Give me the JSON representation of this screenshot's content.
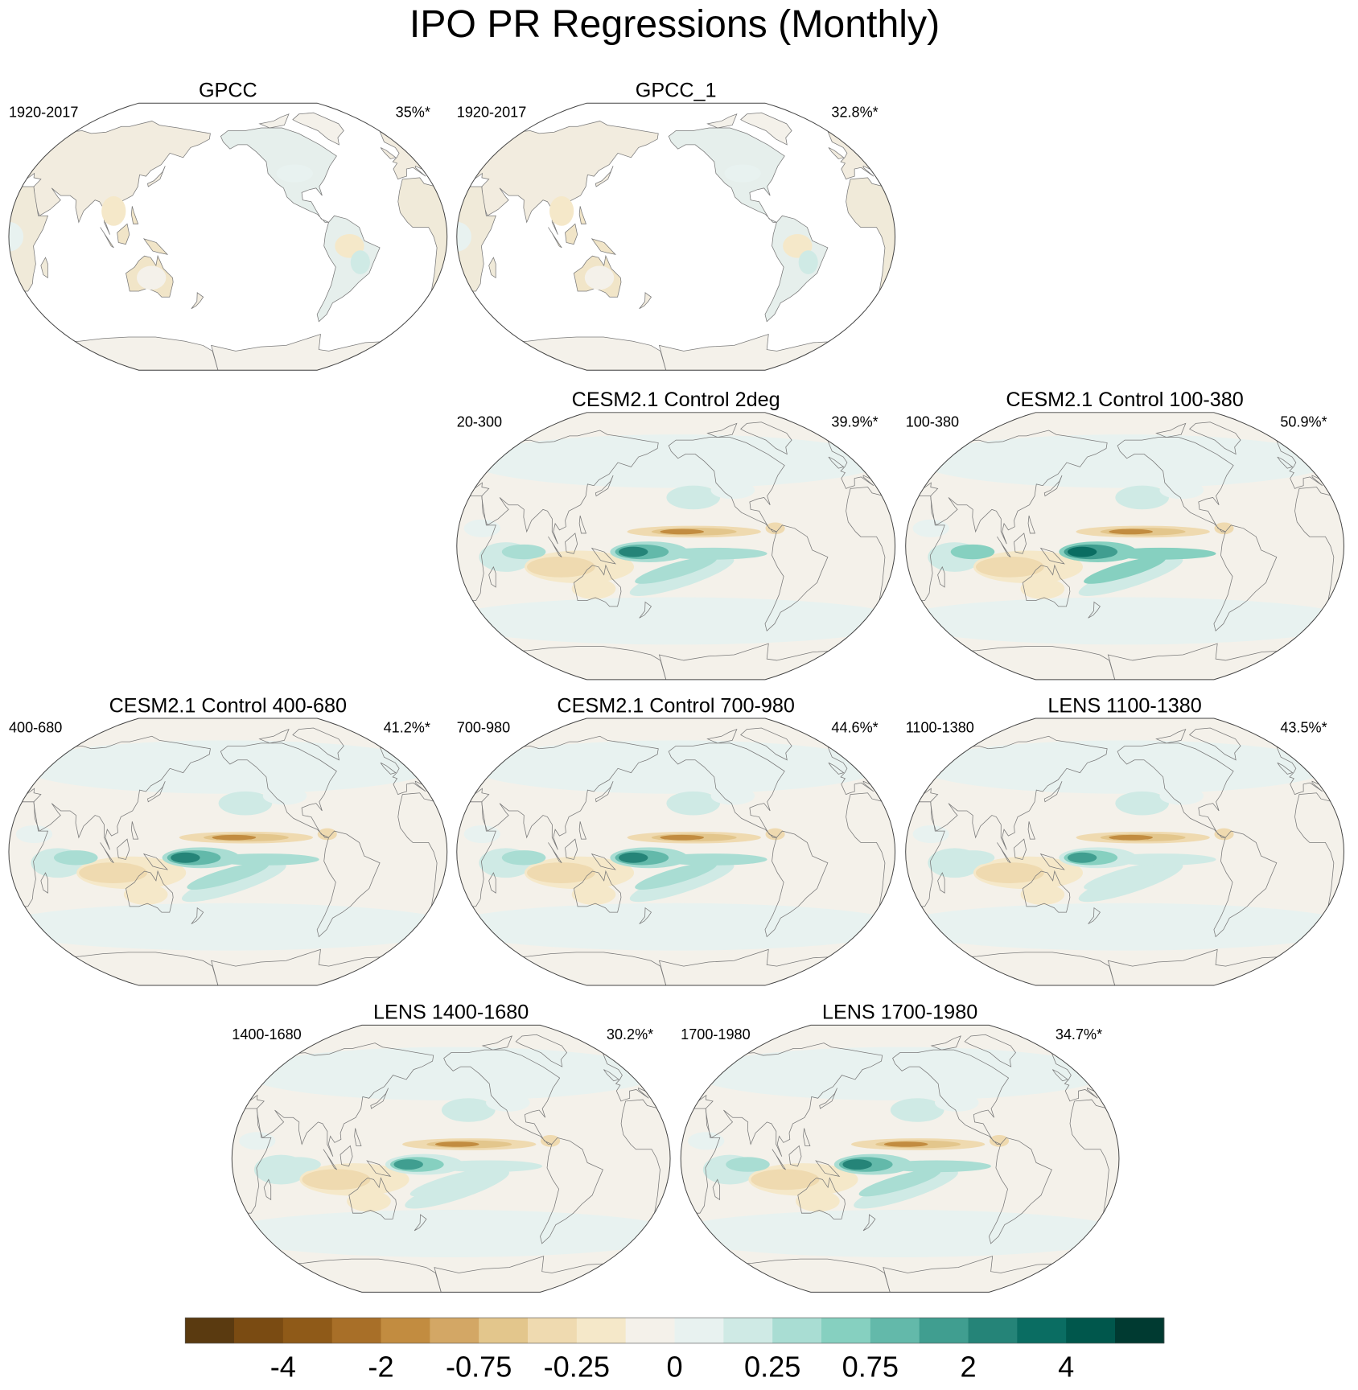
{
  "chart_data": {
    "type": "heatmap",
    "title": "IPO PR Regressions (Monthly)",
    "panels": [
      {
        "title": "GPCC",
        "period": "1920-2017",
        "variance": "35%*"
      },
      {
        "title": "GPCC_1",
        "period": "1920-2017",
        "variance": "32.8%*"
      },
      {
        "title": "CESM2.1 Control 2deg",
        "period": "20-300",
        "variance": "39.9%*"
      },
      {
        "title": "CESM2.1 Control 100-380",
        "period": "100-380",
        "variance": "50.9%*"
      },
      {
        "title": "CESM2.1 Control 400-680",
        "period": "400-680",
        "variance": "41.2%*"
      },
      {
        "title": "CESM2.1 Control 700-980",
        "period": "700-980",
        "variance": "44.6%*"
      },
      {
        "title": "LENS 1100-1380",
        "period": "1100-1380",
        "variance": "43.5%*"
      },
      {
        "title": "LENS 1400-1680",
        "period": "1400-1680",
        "variance": "30.2%*"
      },
      {
        "title": "LENS 1700-1980",
        "period": "1700-1980",
        "variance": "34.7%*"
      }
    ],
    "colorbar": {
      "colors": [
        "#5a3a10",
        "#7a4b12",
        "#8f5a18",
        "#a86f28",
        "#c28c40",
        "#d3a765",
        "#e3c68c",
        "#efdab0",
        "#f5e8c9",
        "#f4f1ea",
        "#e8f2f0",
        "#cfeae5",
        "#a9ddd3",
        "#86d0c0",
        "#63b9aa",
        "#409e90",
        "#258478",
        "#0a6d62",
        "#00574c",
        "#003a31"
      ],
      "tick_labels": [
        "-4",
        "-2",
        "-0.75",
        "-0.25",
        "0",
        "0.25",
        "0.75",
        "2",
        "4"
      ]
    }
  }
}
